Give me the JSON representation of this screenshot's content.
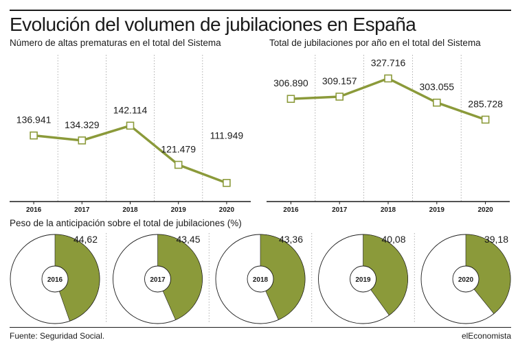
{
  "title": "Evolución del volumen de jubilaciones en España",
  "footer": {
    "source": "Fuente: Seguridad Social.",
    "brand": "elEconomista"
  },
  "colors": {
    "accent": "#8b9a3a",
    "text": "#1a1a1a",
    "grid": "#9a9a9a"
  },
  "chart_data": [
    {
      "type": "line",
      "title": "Número de altas prematuras en el total del Sistema",
      "categories": [
        "2016",
        "2017",
        "2018",
        "2019",
        "2020"
      ],
      "values": [
        136941,
        134329,
        142114,
        121479,
        111949
      ],
      "value_labels": [
        "136.941",
        "134.329",
        "142.114",
        "121.479",
        "111.949"
      ],
      "ylim": [
        109000,
        148000
      ],
      "grid": "vertical-dotted"
    },
    {
      "type": "line",
      "title": "Total de jubilaciones por año en el total del Sistema",
      "categories": [
        "2016",
        "2017",
        "2018",
        "2019",
        "2020"
      ],
      "values": [
        306890,
        309157,
        327716,
        303055,
        285728
      ],
      "value_labels": [
        "306.890",
        "309.157",
        "327.716",
        "303.055",
        "285.728"
      ],
      "ylim": [
        270000,
        335000
      ],
      "grid": "vertical-dotted"
    },
    {
      "type": "pie",
      "title": "Peso de la anticipación sobre el total de jubilaciones (%)",
      "categories": [
        "2016",
        "2017",
        "2018",
        "2019",
        "2020"
      ],
      "values": [
        44.62,
        43.45,
        43.36,
        40.08,
        39.18
      ],
      "value_labels": [
        "44,62",
        "43,45",
        "43,36",
        "40,08",
        "39,18"
      ]
    }
  ]
}
